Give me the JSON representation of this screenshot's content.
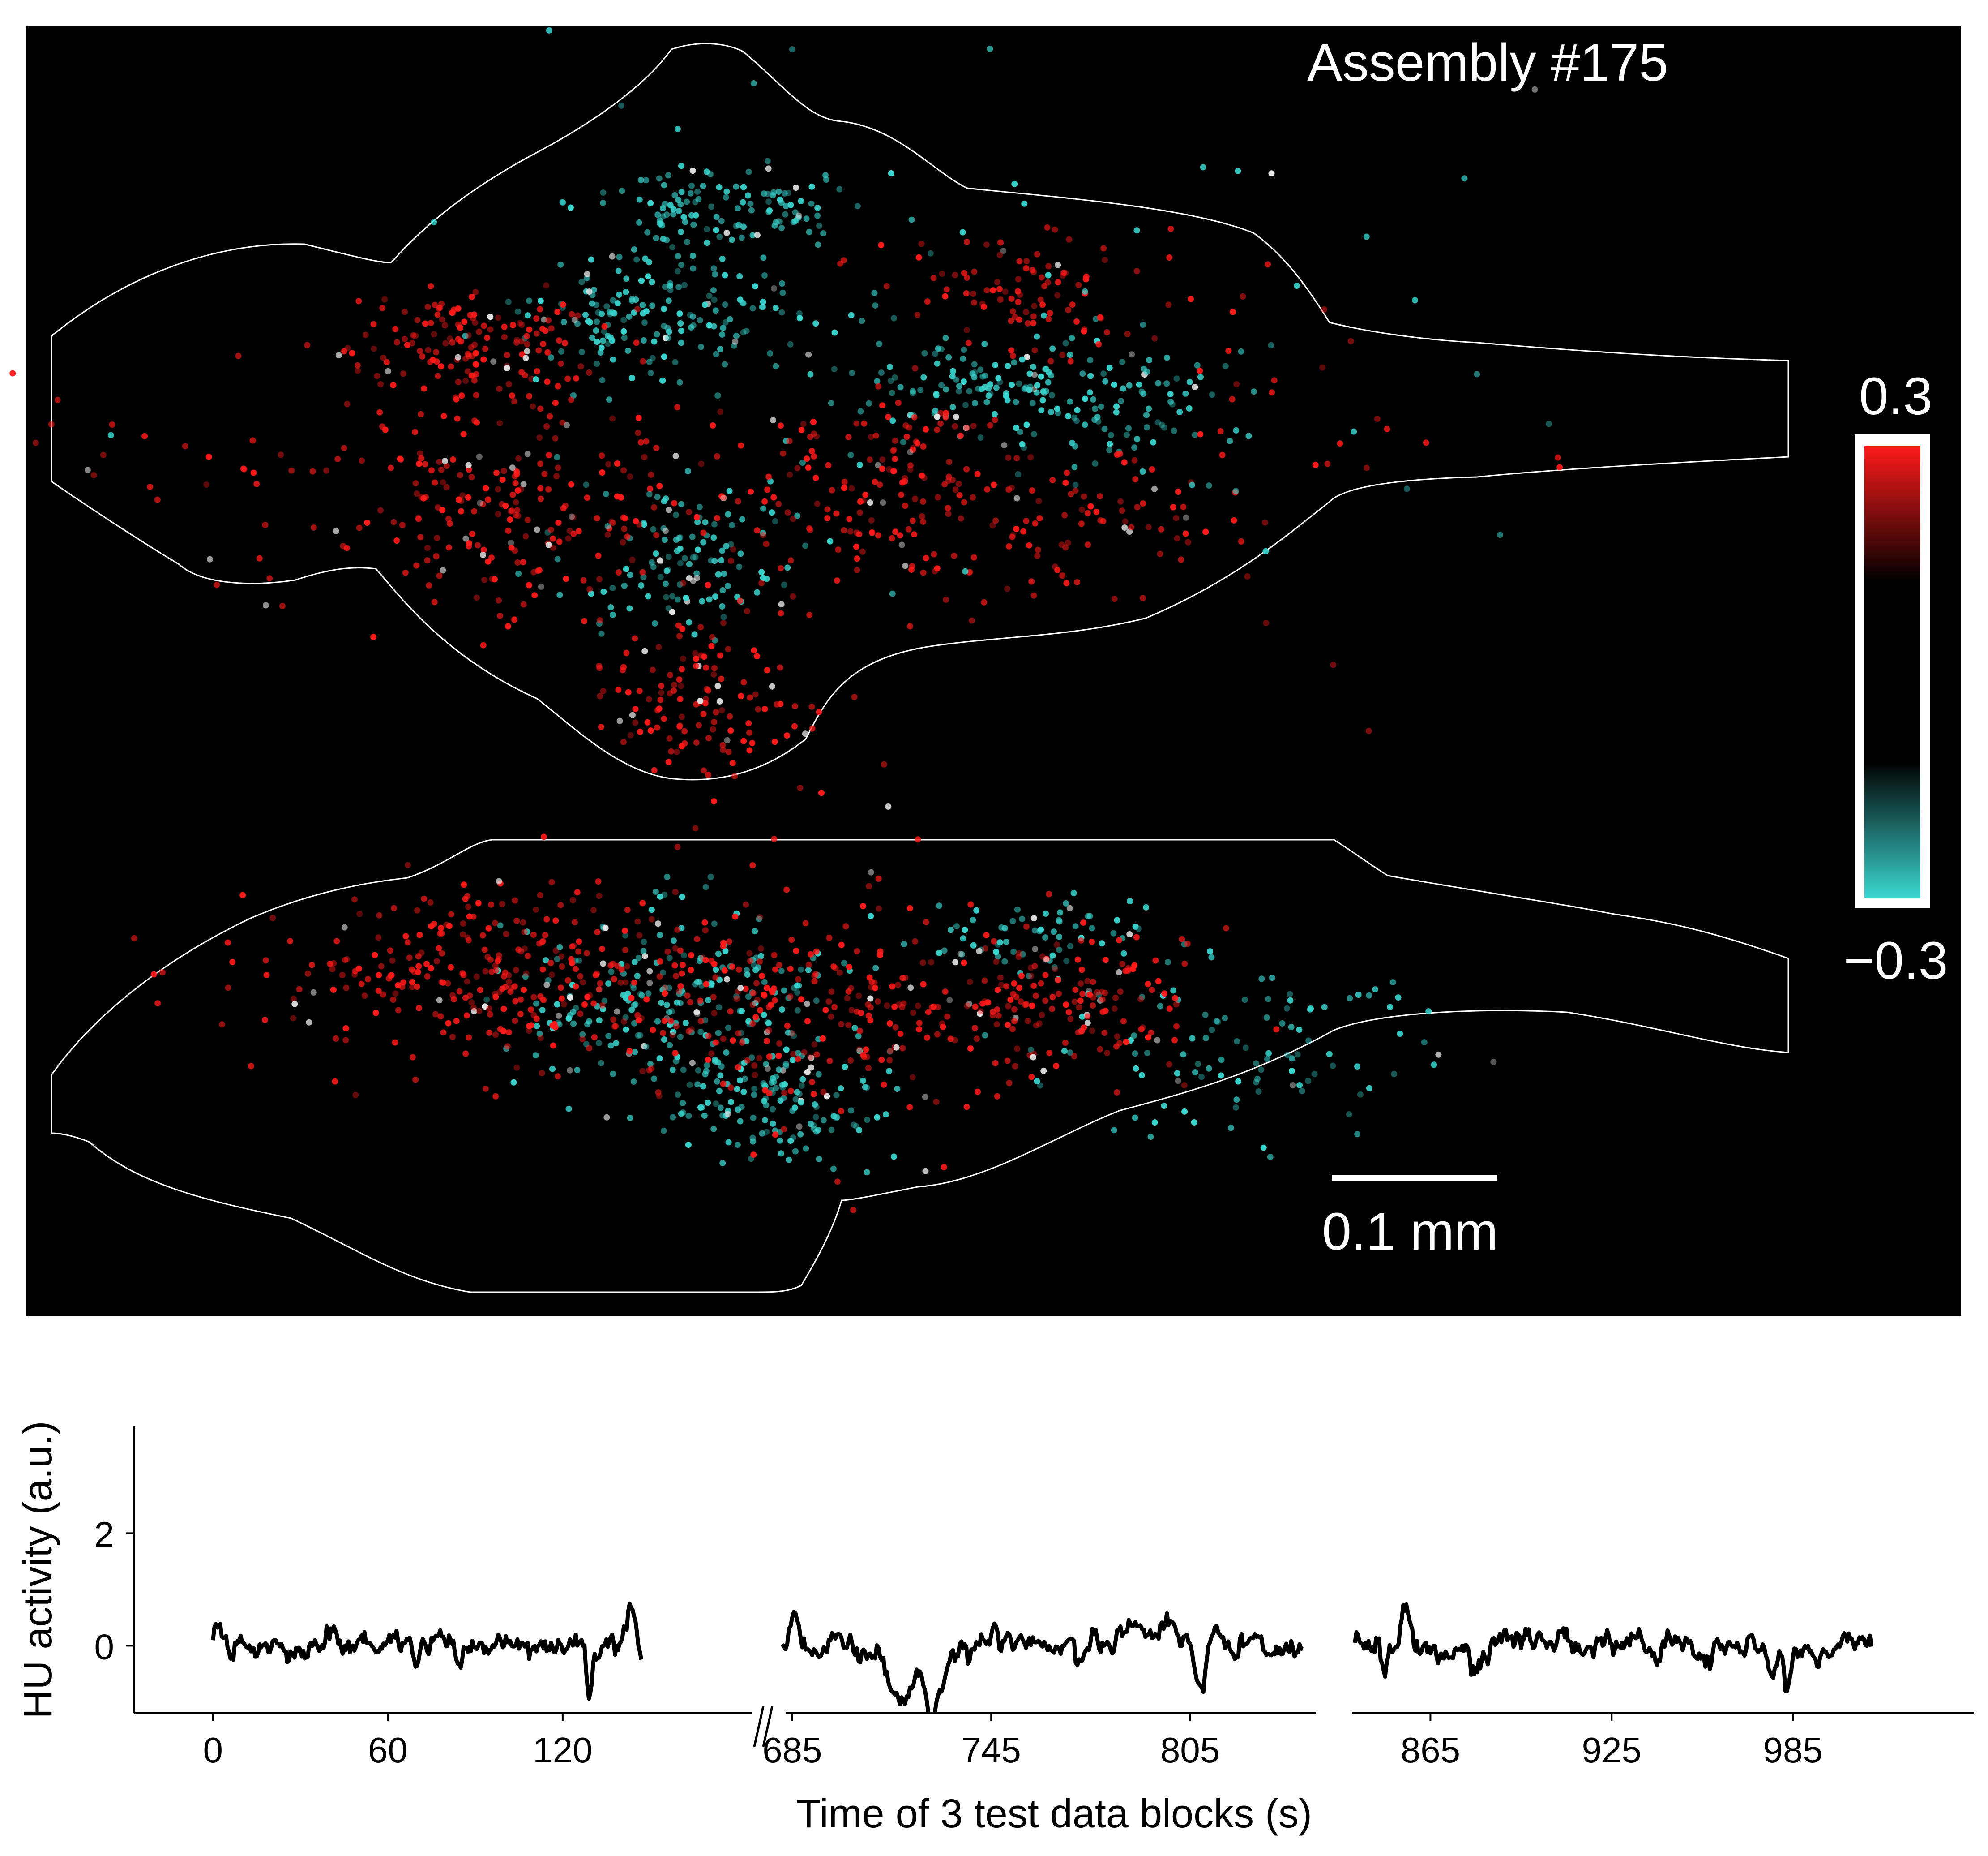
{
  "chart_data": [
    {
      "type": "scatter",
      "title": "Assembly #175",
      "scale_bar_label": "0.1 mm",
      "colorbar": {
        "max_label": "0.3",
        "min_label": "−0.3",
        "range": [
          -0.3,
          0.3
        ],
        "color_positive": "#ff1a1a",
        "color_zero": "#000000",
        "color_negative": "#3ad6d0"
      },
      "background_color": "#000000",
      "outline_color": "#ffffff",
      "clusters": [
        {
          "view": "dorsal",
          "x": 0.36,
          "y": 0.24,
          "sx": 0.033,
          "sy": 0.028,
          "n": 120,
          "sign": -1
        },
        {
          "view": "dorsal",
          "x": 0.33,
          "y": 0.38,
          "sx": 0.034,
          "sy": 0.038,
          "n": 160,
          "sign": -1
        },
        {
          "view": "dorsal",
          "x": 0.34,
          "y": 0.7,
          "sx": 0.03,
          "sy": 0.05,
          "n": 110,
          "sign": -1
        },
        {
          "view": "dorsal",
          "x": 0.49,
          "y": 0.47,
          "sx": 0.028,
          "sy": 0.028,
          "n": 80,
          "sign": -1
        },
        {
          "view": "dorsal",
          "x": 0.56,
          "y": 0.5,
          "sx": 0.044,
          "sy": 0.036,
          "n": 110,
          "sign": -1
        },
        {
          "view": "dorsal",
          "x": 0.23,
          "y": 0.42,
          "sx": 0.035,
          "sy": 0.033,
          "n": 150,
          "sign": 1
        },
        {
          "view": "dorsal",
          "x": 0.25,
          "y": 0.63,
          "sx": 0.05,
          "sy": 0.08,
          "n": 230,
          "sign": 1
        },
        {
          "view": "dorsal",
          "x": 0.35,
          "y": 0.88,
          "sx": 0.028,
          "sy": 0.05,
          "n": 130,
          "sign": 1
        },
        {
          "view": "dorsal",
          "x": 0.44,
          "y": 0.6,
          "sx": 0.05,
          "sy": 0.08,
          "n": 170,
          "sign": 1
        },
        {
          "view": "dorsal",
          "x": 0.52,
          "y": 0.35,
          "sx": 0.03,
          "sy": 0.04,
          "n": 90,
          "sign": 1
        },
        {
          "view": "dorsal",
          "x": 0.53,
          "y": 0.65,
          "sx": 0.05,
          "sy": 0.05,
          "n": 90,
          "sign": 1
        },
        {
          "view": "dorsal",
          "x": 0.12,
          "y": 0.55,
          "sx": 0.07,
          "sy": 0.07,
          "n": 35,
          "sign": 1
        },
        {
          "view": "dorsal",
          "x": 0.62,
          "y": 0.5,
          "sx": 0.08,
          "sy": 0.15,
          "n": 40,
          "sign": 1
        },
        {
          "view": "dorsal",
          "x": 0.45,
          "y": 0.4,
          "sx": 0.15,
          "sy": 0.2,
          "n": 90,
          "sign": -1
        },
        {
          "view": "lateral",
          "x": 0.33,
          "y": 0.38,
          "sx": 0.04,
          "sy": 0.11,
          "n": 230,
          "sign": -1
        },
        {
          "view": "lateral",
          "x": 0.39,
          "y": 0.58,
          "sx": 0.03,
          "sy": 0.06,
          "n": 130,
          "sign": -1
        },
        {
          "view": "lateral",
          "x": 0.52,
          "y": 0.22,
          "sx": 0.035,
          "sy": 0.04,
          "n": 70,
          "sign": -1
        },
        {
          "view": "lateral",
          "x": 0.62,
          "y": 0.45,
          "sx": 0.05,
          "sy": 0.1,
          "n": 110,
          "sign": -1
        },
        {
          "view": "lateral",
          "x": 0.25,
          "y": 0.3,
          "sx": 0.055,
          "sy": 0.09,
          "n": 290,
          "sign": 1
        },
        {
          "view": "lateral",
          "x": 0.4,
          "y": 0.4,
          "sx": 0.05,
          "sy": 0.1,
          "n": 180,
          "sign": 1
        },
        {
          "view": "lateral",
          "x": 0.53,
          "y": 0.36,
          "sx": 0.035,
          "sy": 0.07,
          "n": 150,
          "sign": 1
        },
        {
          "view": "lateral",
          "x": 0.14,
          "y": 0.3,
          "sx": 0.04,
          "sy": 0.08,
          "n": 30,
          "sign": 1
        },
        {
          "view": "lateral",
          "x": 0.45,
          "y": 0.3,
          "sx": 0.12,
          "sy": 0.2,
          "n": 70,
          "sign": 1
        }
      ]
    },
    {
      "type": "line",
      "title": "",
      "xlabel": "Time of 3 test data blocks (s)",
      "ylabel": "HU activity (a.u.)",
      "ylim": [
        -1.2,
        3.9
      ],
      "yticks": [
        {
          "value": 0,
          "label": "0"
        },
        {
          "value": 2,
          "label": "2"
        }
      ],
      "line_color": "#000000",
      "blocks": [
        {
          "xlim": [
            -27,
            185
          ],
          "t": [
            0,
            147
          ],
          "xticks": [
            {
              "value": 0,
              "label": "0"
            },
            {
              "value": 60,
              "label": "60"
            },
            {
              "value": 120,
              "label": "120"
            }
          ],
          "events": [
            {
              "t": 2,
              "v": 0.3,
              "w": 1.5
            },
            {
              "t": 15,
              "v": -0.3,
              "w": 1.0
            },
            {
              "t": 40,
              "v": 0.25,
              "w": 1.5
            },
            {
              "t": 70,
              "v": -0.35,
              "w": 1.2
            },
            {
              "t": 78,
              "v": 0.3,
              "w": 2.0
            },
            {
              "t": 84,
              "v": -0.3,
              "w": 1.0
            },
            {
              "t": 129,
              "v": -0.95,
              "w": 0.8
            },
            {
              "t": 144,
              "v": 0.75,
              "w": 2.0
            },
            {
              "t": 151,
              "v": -0.6,
              "w": 3.5
            },
            {
              "t": 155,
              "v": -0.6,
              "w": 1.2
            }
          ]
        },
        {
          "xlim": [
            683,
            843
          ],
          "t": [
            682,
            839
          ],
          "xticks": [
            {
              "value": 685,
              "label": "685"
            },
            {
              "value": 745,
              "label": "745"
            },
            {
              "value": 805,
              "label": "805"
            }
          ],
          "events": [
            {
              "t": 686,
              "v": 0.55,
              "w": 1.0
            },
            {
              "t": 693,
              "v": -0.3,
              "w": 3.0
            },
            {
              "t": 718,
              "v": -1.1,
              "w": 3.5
            },
            {
              "t": 728,
              "v": -0.8,
              "w": 3.0
            },
            {
              "t": 727,
              "v": -0.7,
              "w": 1.0
            },
            {
              "t": 750,
              "v": 0.2,
              "w": 5.0
            },
            {
              "t": 788,
              "v": 0.3,
              "w": 4.0
            },
            {
              "t": 798,
              "v": 0.35,
              "w": 2.0
            },
            {
              "t": 808,
              "v": -0.8,
              "w": 1.2
            },
            {
              "t": 825,
              "v": 0.25,
              "w": 2.0
            }
          ]
        },
        {
          "xlim": [
            839,
            1045
          ],
          "t": [
            840,
            1011
          ],
          "xticks": [
            {
              "value": 865,
              "label": "865"
            },
            {
              "value": 925,
              "label": "925"
            },
            {
              "value": 985,
              "label": "985"
            }
          ],
          "events": [
            {
              "t": 850,
              "v": -0.6,
              "w": 1.0
            },
            {
              "t": 857,
              "v": 0.7,
              "w": 1.5
            },
            {
              "t": 870,
              "v": -0.3,
              "w": 3.0
            },
            {
              "t": 880,
              "v": -0.35,
              "w": 2.0
            },
            {
              "t": 899,
              "v": 0.3,
              "w": 2.0
            },
            {
              "t": 908,
              "v": 0.3,
              "w": 1.5
            },
            {
              "t": 940,
              "v": -0.4,
              "w": 1.0
            },
            {
              "t": 955,
              "v": -0.3,
              "w": 2.0
            },
            {
              "t": 978,
              "v": -0.65,
              "w": 1.0
            },
            {
              "t": 983,
              "v": -0.8,
              "w": 1.0
            },
            {
              "t": 995,
              "v": -0.3,
              "w": 2.5
            },
            {
              "t": 1004,
              "v": 0.2,
              "w": 2.0
            }
          ]
        }
      ]
    }
  ]
}
